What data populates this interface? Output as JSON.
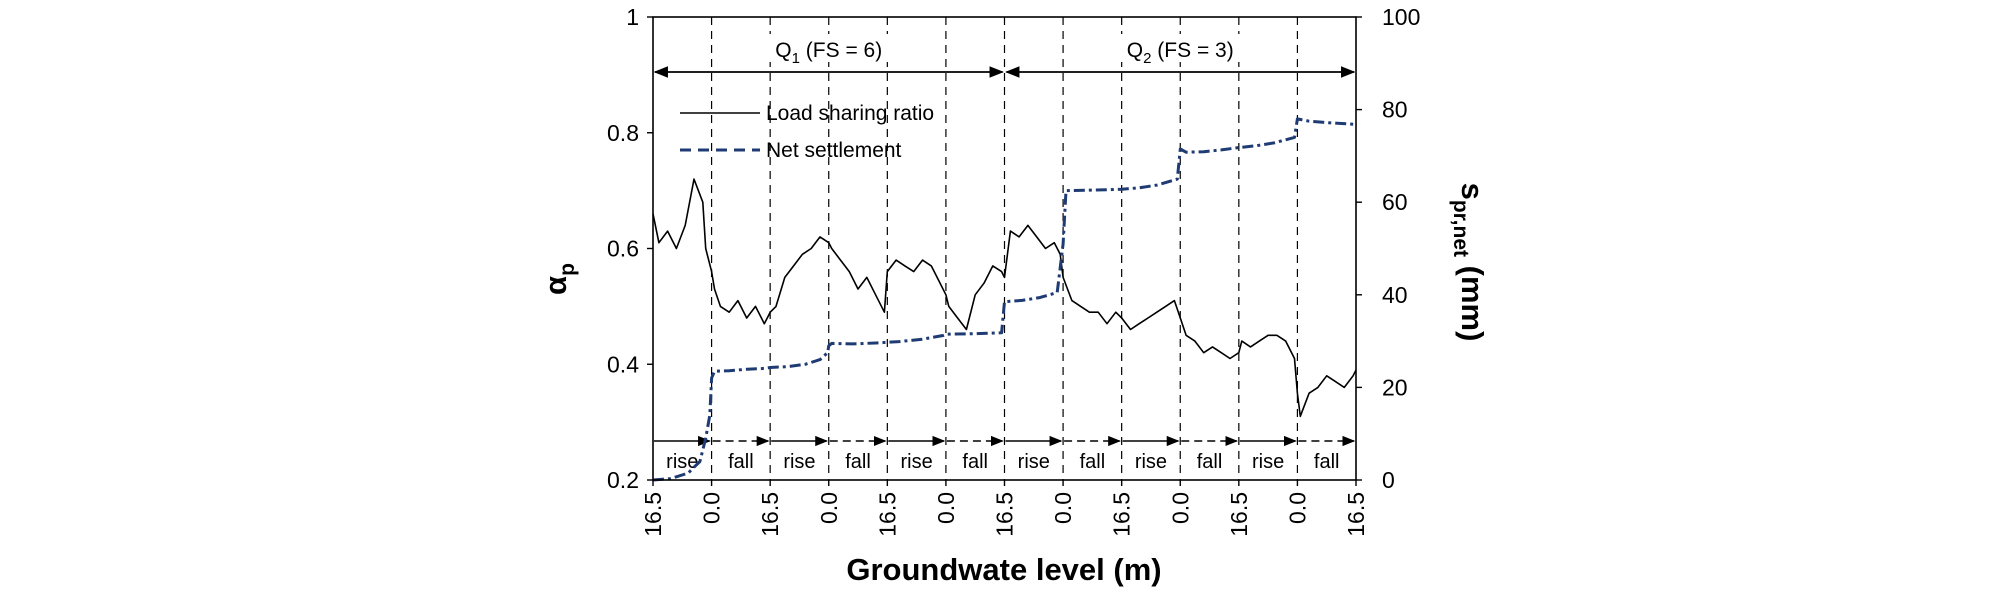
{
  "chart_data": {
    "type": "line",
    "xlabel": "Groundwate level (m)",
    "ylabel_left": "α",
    "ylabel_left_sub": "p",
    "ylabel_right": "s",
    "ylabel_right_sub": "pr,net",
    "ylabel_right_unit": " (mm)",
    "ylim_left": [
      0.2,
      1.0
    ],
    "ylim_right": [
      0,
      100
    ],
    "yticks_left": [
      "0.2",
      "0.4",
      "0.6",
      "0.8",
      "1"
    ],
    "yticks_right": [
      "0",
      "20",
      "40",
      "60",
      "80",
      "100"
    ],
    "x_tick_labels": [
      "16.5",
      "0.0",
      "16.5",
      "0.0",
      "16.5",
      "0.0",
      "16.5",
      "0.0",
      "16.5",
      "0.0",
      "16.5",
      "0.0",
      "16.5"
    ],
    "phases": [
      "rise",
      "fall",
      "rise",
      "fall",
      "rise",
      "fall",
      "rise",
      "fall",
      "rise",
      "fall",
      "rise",
      "fall"
    ],
    "stages": [
      {
        "main": "Q",
        "sub": "1",
        "rest": " (FS = 6)",
        "from_interval": 0,
        "to_interval": 6
      },
      {
        "main": "Q",
        "sub": "2",
        "rest": " (FS = 3)",
        "from_interval": 6,
        "to_interval": 12
      }
    ],
    "series": [
      {
        "name": "Load sharing ratio",
        "axis": "left",
        "style": "solid",
        "color": "#000000",
        "x": [
          0,
          0.1,
          0.25,
          0.4,
          0.55,
          0.7,
          0.85,
          0.9,
          1.0,
          1.05,
          1.15,
          1.3,
          1.45,
          1.6,
          1.75,
          1.9,
          2.0,
          2.1,
          2.25,
          2.4,
          2.55,
          2.7,
          2.85,
          3.0,
          3.05,
          3.2,
          3.35,
          3.5,
          3.65,
          3.8,
          3.95,
          4.0,
          4.15,
          4.3,
          4.45,
          4.6,
          4.75,
          4.9,
          5.0,
          5.05,
          5.2,
          5.35,
          5.5,
          5.65,
          5.8,
          5.95,
          6.0,
          6.1,
          6.25,
          6.4,
          6.55,
          6.7,
          6.85,
          6.95,
          7.0,
          7.15,
          7.3,
          7.45,
          7.6,
          7.75,
          7.9,
          8.0,
          8.15,
          8.3,
          8.45,
          8.6,
          8.75,
          8.9,
          9.0,
          9.1,
          9.25,
          9.4,
          9.55,
          9.7,
          9.85,
          10.0,
          10.05,
          10.2,
          10.35,
          10.5,
          10.65,
          10.8,
          10.95,
          11.0,
          11.05,
          11.2,
          11.35,
          11.5,
          11.65,
          11.8,
          11.95,
          12.0
        ],
        "y": [
          0.66,
          0.61,
          0.63,
          0.6,
          0.64,
          0.72,
          0.68,
          0.6,
          0.56,
          0.53,
          0.5,
          0.49,
          0.51,
          0.48,
          0.5,
          0.47,
          0.49,
          0.5,
          0.55,
          0.57,
          0.59,
          0.6,
          0.62,
          0.61,
          0.6,
          0.58,
          0.56,
          0.53,
          0.55,
          0.52,
          0.49,
          0.56,
          0.58,
          0.57,
          0.56,
          0.58,
          0.57,
          0.54,
          0.52,
          0.5,
          0.48,
          0.46,
          0.52,
          0.54,
          0.57,
          0.56,
          0.55,
          0.63,
          0.62,
          0.64,
          0.62,
          0.6,
          0.61,
          0.59,
          0.55,
          0.51,
          0.5,
          0.49,
          0.49,
          0.47,
          0.49,
          0.48,
          0.46,
          0.47,
          0.48,
          0.49,
          0.5,
          0.51,
          0.48,
          0.45,
          0.44,
          0.42,
          0.43,
          0.42,
          0.41,
          0.42,
          0.44,
          0.43,
          0.44,
          0.45,
          0.45,
          0.44,
          0.41,
          0.35,
          0.31,
          0.35,
          0.36,
          0.38,
          0.37,
          0.36,
          0.38,
          0.39
        ]
      },
      {
        "name": "Net settlement",
        "axis": "right",
        "style": "dashed",
        "color": "#1f3b73",
        "x": [
          0,
          0.3,
          0.6,
          0.8,
          0.9,
          0.97,
          1.0,
          1.05,
          1.3,
          1.6,
          1.9,
          2.0,
          2.3,
          2.6,
          2.85,
          2.98,
          3.0,
          3.05,
          3.4,
          3.8,
          4.2,
          4.6,
          4.95,
          5.0,
          5.5,
          5.95,
          6.0,
          6.3,
          6.6,
          6.9,
          7.0,
          7.05,
          7.4,
          7.8,
          8.0,
          8.3,
          8.6,
          8.95,
          9.0,
          9.1,
          9.4,
          9.7,
          10.0,
          10.3,
          10.6,
          10.95,
          11.0,
          11.2,
          11.5,
          12.0
        ],
        "y": [
          0,
          0.3,
          1.5,
          4,
          9,
          14,
          22,
          23.5,
          23.6,
          23.9,
          24.1,
          24.3,
          24.5,
          25,
          26,
          27.5,
          29,
          29.5,
          29.4,
          29.6,
          29.9,
          30.4,
          31.2,
          31.5,
          31.6,
          31.8,
          38.5,
          38.8,
          39.4,
          40.5,
          51,
          62.5,
          62.6,
          62.7,
          62.8,
          63.1,
          63.7,
          65,
          71.5,
          70.8,
          70.9,
          71.3,
          71.8,
          72.2,
          72.8,
          74,
          78,
          77.5,
          77.2,
          76.8
        ]
      }
    ],
    "legend": {
      "entries": [
        "Load sharing ratio",
        "Net settlement"
      ],
      "placement": "top-left"
    }
  }
}
